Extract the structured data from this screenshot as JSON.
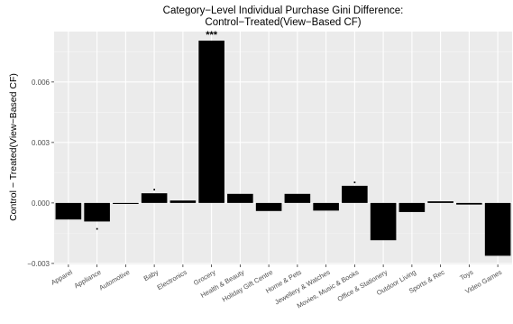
{
  "chart_data": {
    "type": "bar",
    "title": "Category−Level Individual Purchase Gini Difference:",
    "subtitle": "Control−Treated(View−Based CF)",
    "xlabel": "",
    "ylabel": "Control − Treated(View−Based CF)",
    "ylim": [
      -0.00305,
      0.0085
    ],
    "yticks": [
      -0.003,
      0.0,
      0.003,
      0.006
    ],
    "ytick_labels": [
      "−0.003",
      "0.000",
      "0.003",
      "0.006"
    ],
    "grid": true,
    "bar_color": "#000000",
    "panel_color": "#ebebeb",
    "categories": [
      "Apparel",
      "Appliance",
      "Automotive",
      "Baby",
      "Electronics",
      "Grocery",
      "Health & Beauty",
      "Holiday Gift Centre",
      "Home & Pets",
      "Jewellery & Watches",
      "Movies, Music & Books",
      "Office & Stationery",
      "Outdoor Living",
      "Sports & Rec",
      "Toys",
      "Video Games"
    ],
    "values": [
      -0.00082,
      -0.00092,
      -5e-05,
      0.00048,
      0.00012,
      0.00805,
      0.00045,
      -0.0004,
      0.00045,
      -0.00038,
      0.00085,
      -0.00185,
      -0.00045,
      8e-05,
      -8e-05,
      -0.00262
    ],
    "significance": [
      "",
      ".",
      "",
      ".",
      "",
      "***",
      "",
      "",
      "",
      "",
      ".",
      "",
      "",
      "",
      "",
      ""
    ]
  }
}
